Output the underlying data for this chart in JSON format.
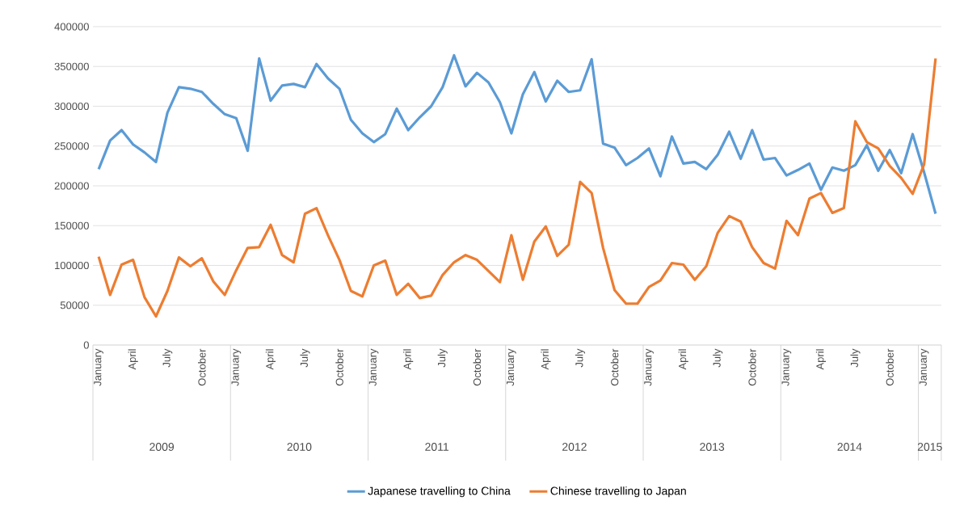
{
  "chart_data": {
    "type": "line",
    "categories": [
      "January",
      null,
      null,
      "April",
      null,
      null,
      "July",
      null,
      null,
      "October",
      null,
      null,
      "January",
      null,
      null,
      "April",
      null,
      null,
      "July",
      null,
      null,
      "October",
      null,
      null,
      "January",
      null,
      null,
      "April",
      null,
      null,
      "July",
      null,
      null,
      "October",
      null,
      null,
      "January",
      null,
      null,
      "April",
      null,
      null,
      "July",
      null,
      null,
      "October",
      null,
      null,
      "January",
      null,
      null,
      "April",
      null,
      null,
      "July",
      null,
      null,
      "October",
      null,
      null,
      "January",
      null,
      null,
      "April",
      null,
      null,
      "July",
      null,
      null,
      "October",
      null,
      null,
      "January",
      null
    ],
    "annotations": [
      "2009",
      "2010",
      "2011",
      "2012",
      "2013",
      "2014",
      "2015"
    ],
    "series": [
      {
        "name": "Japanese travelling to China",
        "color": "#5b9bd5",
        "values": [
          221000,
          257000,
          270000,
          252000,
          242000,
          230000,
          292000,
          324000,
          322000,
          318000,
          303000,
          290000,
          285000,
          244000,
          360000,
          307000,
          326000,
          328000,
          324000,
          353000,
          335000,
          322000,
          283000,
          266000,
          255000,
          265000,
          297000,
          270000,
          286000,
          300000,
          324000,
          364000,
          325000,
          342000,
          330000,
          305000,
          266000,
          315000,
          343000,
          306000,
          332000,
          318000,
          320000,
          359000,
          253000,
          248000,
          226000,
          235000,
          247000,
          212000,
          262000,
          228000,
          230000,
          221000,
          239000,
          268000,
          234000,
          270000,
          233000,
          235000,
          213000,
          220000,
          228000,
          195000,
          223000,
          219000,
          226000,
          251000,
          219000,
          245000,
          216000,
          265000,
          217000,
          165000
        ]
      },
      {
        "name": "Chinese travelling to Japan",
        "color": "#ed7d31",
        "values": [
          111000,
          63000,
          101000,
          107000,
          60000,
          36000,
          68000,
          110000,
          99000,
          109000,
          80000,
          63000,
          94000,
          122000,
          123000,
          151000,
          113000,
          104000,
          165000,
          172000,
          138000,
          107000,
          68000,
          61000,
          100000,
          106000,
          63000,
          77000,
          59000,
          62000,
          88000,
          104000,
          113000,
          107000,
          93000,
          79000,
          138000,
          82000,
          130000,
          149000,
          112000,
          126000,
          205000,
          191000,
          122000,
          69000,
          52000,
          52000,
          73000,
          81000,
          103000,
          101000,
          82000,
          99000,
          141000,
          162000,
          155000,
          123000,
          103000,
          96000,
          156000,
          138000,
          184000,
          191000,
          166000,
          172000,
          281000,
          255000,
          247000,
          225000,
          210000,
          190000,
          227000,
          360000
        ]
      }
    ],
    "ylim": [
      0,
      400000
    ],
    "yticks": [
      0,
      50000,
      100000,
      150000,
      200000,
      250000,
      300000,
      350000,
      400000
    ],
    "grid": "y",
    "legend": "bottom"
  }
}
